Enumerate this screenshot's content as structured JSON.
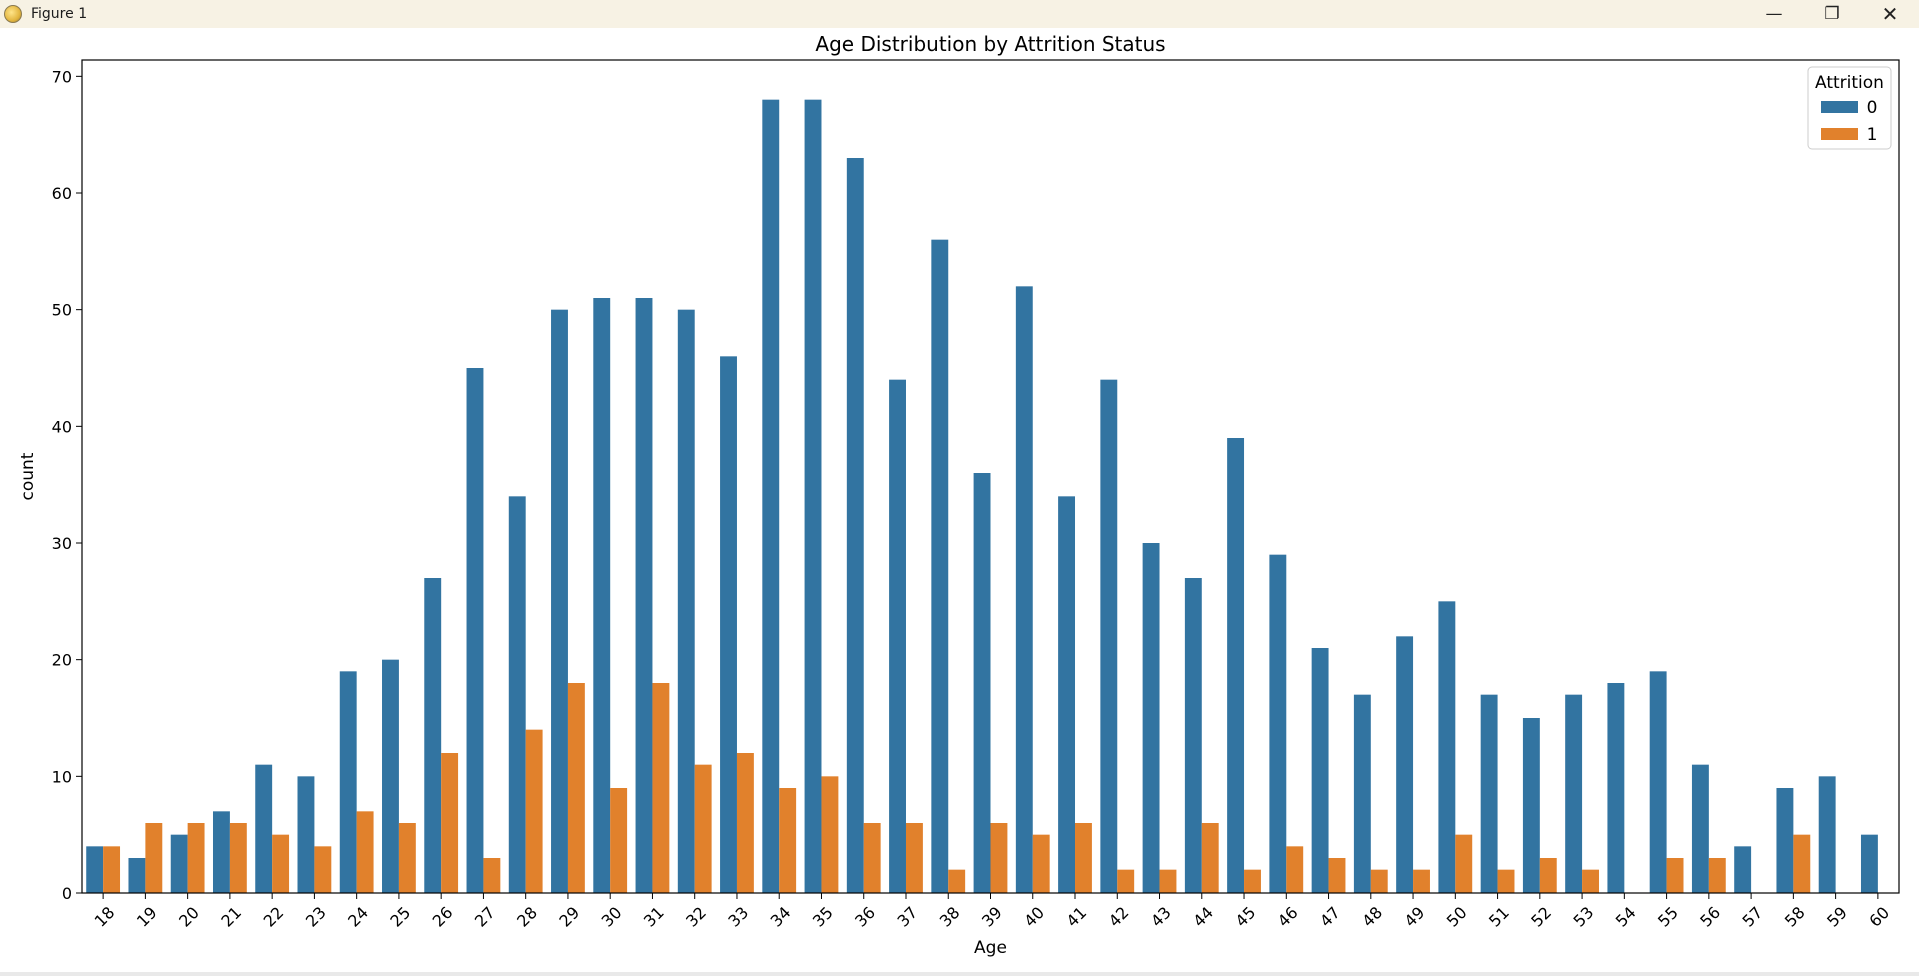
{
  "window": {
    "title": "Figure 1",
    "controls": {
      "minimize": "—",
      "restore": "❐",
      "close": "✕"
    }
  },
  "chart_data": {
    "type": "bar",
    "title": "Age Distribution by Attrition Status",
    "xlabel": "Age",
    "ylabel": "count",
    "ylim": [
      0,
      71.4
    ],
    "yticks": [
      0,
      10,
      20,
      30,
      40,
      50,
      60,
      70
    ],
    "categories": [
      "18",
      "19",
      "20",
      "21",
      "22",
      "23",
      "24",
      "25",
      "26",
      "27",
      "28",
      "29",
      "30",
      "31",
      "32",
      "33",
      "34",
      "35",
      "36",
      "37",
      "38",
      "39",
      "40",
      "41",
      "42",
      "43",
      "44",
      "45",
      "46",
      "47",
      "48",
      "49",
      "50",
      "51",
      "52",
      "53",
      "54",
      "55",
      "56",
      "57",
      "58",
      "59",
      "60"
    ],
    "legend": {
      "title": "Attrition",
      "position": "top-right"
    },
    "series": [
      {
        "name": "0",
        "color": "#3274a1",
        "values": [
          4,
          3,
          5,
          7,
          11,
          10,
          19,
          20,
          27,
          45,
          34,
          50,
          51,
          51,
          50,
          46,
          68,
          68,
          63,
          44,
          56,
          36,
          52,
          34,
          44,
          30,
          27,
          39,
          29,
          21,
          17,
          22,
          25,
          17,
          15,
          17,
          18,
          19,
          11,
          4,
          9,
          10,
          5
        ]
      },
      {
        "name": "1",
        "color": "#e1812c",
        "values": [
          4,
          6,
          6,
          6,
          5,
          4,
          7,
          6,
          12,
          3,
          14,
          18,
          9,
          18,
          11,
          12,
          9,
          10,
          6,
          6,
          2,
          6,
          5,
          6,
          2,
          2,
          6,
          2,
          4,
          3,
          2,
          2,
          5,
          2,
          3,
          2,
          0,
          3,
          3,
          0,
          5,
          0,
          0
        ]
      }
    ]
  }
}
